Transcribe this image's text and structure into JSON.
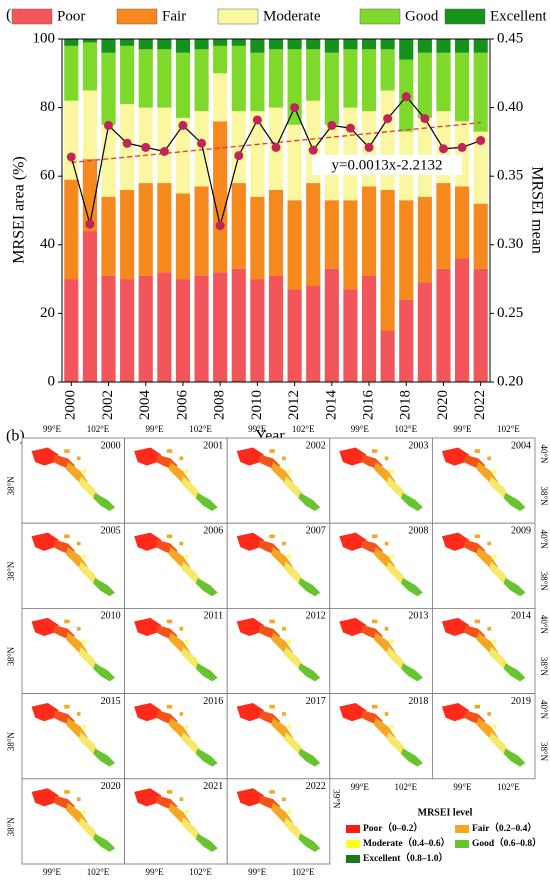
{
  "chart_data": {
    "type": "bar",
    "stacked": true,
    "panel_label": "(a)",
    "x_label": "Year",
    "y_label": "MRSEI area (%)",
    "y2_label": "MRSEI mean",
    "categories": [
      "2000",
      null,
      "2002",
      null,
      "2004",
      null,
      "2006",
      null,
      "2008",
      null,
      "2010",
      null,
      "2012",
      null,
      "2014",
      null,
      "2016",
      null,
      "2018",
      null,
      "2020",
      null,
      "2022"
    ],
    "series": [
      {
        "name": "Poor",
        "color": "#f2555a",
        "values": [
          30,
          44,
          31,
          30,
          31,
          32,
          30,
          31,
          32,
          33,
          30,
          31,
          27,
          28,
          33,
          27,
          31,
          15,
          24,
          29,
          33,
          36,
          33
        ]
      },
      {
        "name": "Fair",
        "color": "#f5891e",
        "values": [
          29,
          21,
          23,
          26,
          27,
          26,
          25,
          26,
          44,
          25,
          24,
          25,
          26,
          30,
          20,
          26,
          26,
          41,
          29,
          25,
          25,
          21,
          19
        ]
      },
      {
        "name": "Moderate",
        "color": "#fbf7a0",
        "values": [
          23,
          20,
          21,
          25,
          22,
          22,
          22,
          22,
          14,
          21,
          25,
          24,
          22,
          24,
          22,
          27,
          22,
          29,
          20,
          23,
          21,
          19,
          21
        ]
      },
      {
        "name": "Good",
        "color": "#7fd92a",
        "values": [
          16,
          14,
          21,
          17,
          17,
          17,
          19,
          18,
          8,
          19,
          17,
          17,
          22,
          15,
          21,
          17,
          18,
          12,
          21,
          19,
          17,
          20,
          23
        ]
      },
      {
        "name": "Excellent",
        "color": "#15921d",
        "values": [
          2,
          1,
          4,
          2,
          3,
          3,
          4,
          3,
          2,
          2,
          4,
          3,
          3,
          3,
          4,
          3,
          3,
          3,
          6,
          4,
          4,
          4,
          4
        ]
      }
    ],
    "mean_line": {
      "axis": "y2",
      "color": "#000000",
      "marker_color": "#c0245a",
      "values": [
        0.364,
        0.315,
        0.387,
        0.374,
        0.371,
        0.368,
        0.387,
        0.374,
        0.314,
        0.365,
        0.391,
        0.371,
        0.4,
        0.369,
        0.387,
        0.385,
        0.371,
        0.392,
        0.408,
        0.392,
        0.37,
        0.371,
        0.376
      ]
    },
    "trend": {
      "axis": "y2",
      "label": "y=0.0013x-2.2132",
      "color": "#e53935",
      "values": [
        0.36,
        0.389
      ]
    },
    "ylim": [
      0,
      100
    ],
    "yticks": [
      0,
      20,
      40,
      60,
      80,
      100
    ],
    "y2lim": [
      0.2,
      0.45
    ],
    "y2ticks": [
      {
        "value": 0.2,
        "label": "0.20"
      },
      {
        "value": 0.25,
        "label": "0.25"
      },
      {
        "value": 0.3,
        "label": "0.30"
      },
      {
        "value": 0.35,
        "label": "0.35"
      },
      {
        "value": 0.4,
        "label": "0.40"
      },
      {
        "value": 0.45,
        "label": "0.45"
      }
    ],
    "legend": "top"
  },
  "panel_b": {
    "label": "(b)",
    "years": [
      "2000",
      "2001",
      "2002",
      "2003",
      "2004",
      "2005",
      "2006",
      "2007",
      "2008",
      "2009",
      "2010",
      "2011",
      "2012",
      "2013",
      "2014",
      "2015",
      "2016",
      "2017",
      "2018",
      "2019",
      "2020",
      "2021",
      "2022"
    ],
    "lon_labels": [
      "99°E",
      "102°E"
    ],
    "lat_labels": [
      "38°N",
      "40°N",
      "39°N"
    ],
    "legend": {
      "title": "MRSEI  level",
      "items": [
        {
          "label": "Poor（0–0.2）",
          "color": "#ff1a1a"
        },
        {
          "label": "Fair（0.2–0.4）",
          "color": "#f5a623"
        },
        {
          "label": "Moderate（0.4–0.6）",
          "color": "#ffff1a"
        },
        {
          "label": "Good（0.6–0.8）",
          "color": "#66c42e"
        },
        {
          "label": "Excellent（0.8–1.0）",
          "color": "#1c7a1c"
        }
      ]
    }
  }
}
